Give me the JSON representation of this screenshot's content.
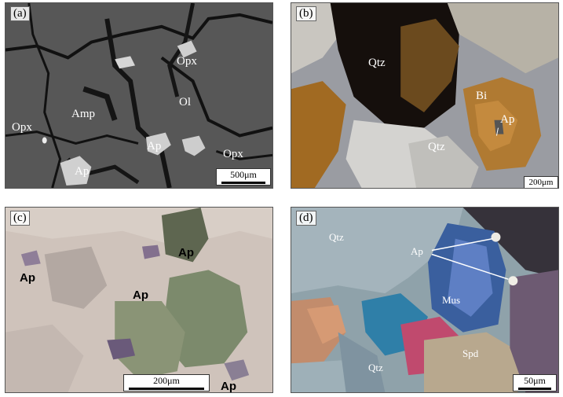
{
  "panels": {
    "a": {
      "label": "(a)",
      "minerals": [
        "Opx",
        "Amp",
        "Ol",
        "Opx",
        "Ap",
        "Ap",
        "Opx"
      ],
      "scale": "500μm"
    },
    "b": {
      "label": "(b)",
      "minerals": [
        "Qtz",
        "Bi",
        "Ap",
        "Qtz"
      ],
      "scale": "200μm"
    },
    "c": {
      "label": "(c)",
      "minerals": [
        "Ap",
        "Ap",
        "Ap",
        "Ap"
      ],
      "scale": "200μm"
    },
    "d": {
      "label": "(d)",
      "minerals": [
        "Qtz",
        "Ap",
        "Mus",
        "Qtz",
        "Spd"
      ],
      "scale": "50μm"
    }
  }
}
